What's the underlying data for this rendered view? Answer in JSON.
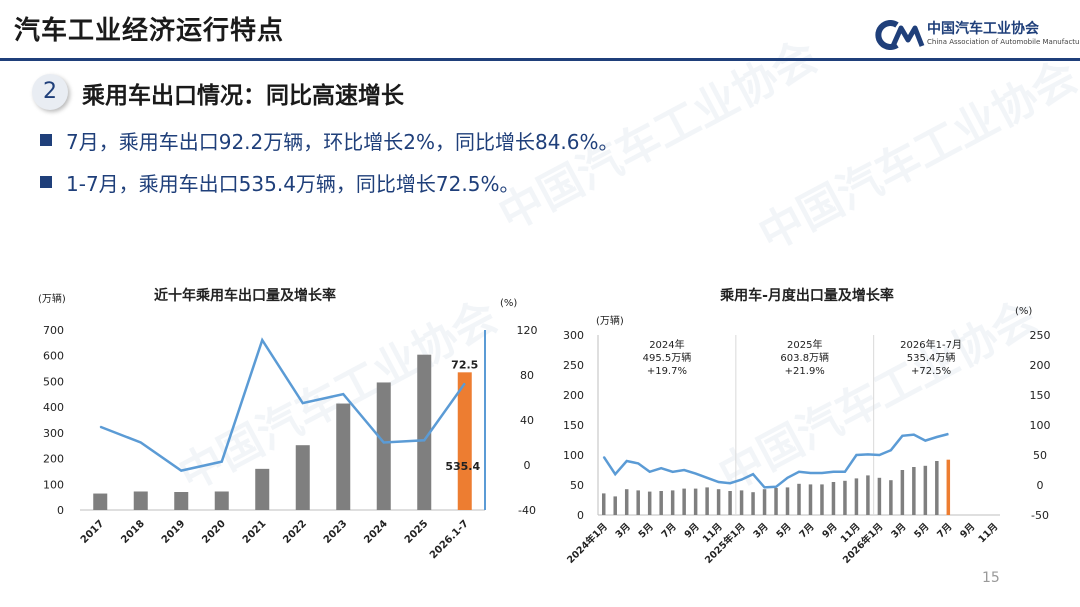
{
  "header": {
    "title": "汽车工业经济运行特点",
    "logo_cn": "中国汽车工业协会",
    "logo_en": "China Association of Automobile Manufacturers"
  },
  "section": {
    "number": "2",
    "title": "乘用车出口情况：同比高速增长"
  },
  "bullets": [
    "7月，乘用车出口92.2万辆，环比增长2%，同比增长84.6%。",
    "1-7月，乘用车出口535.4万辆，同比增长72.5%。"
  ],
  "watermark": "中国汽车工业协会",
  "page_number": "15",
  "colors": {
    "bar": "#7f7f7f",
    "highlight": "#ed7d31",
    "line": "#5b9bd5",
    "brand": "#1f3f7a"
  },
  "chart_data": [
    {
      "type": "bar",
      "title": "近十年乘用车出口量及增长率",
      "ylabel": "(万辆)",
      "y2label": "(%)",
      "categories": [
        "2017",
        "2018",
        "2019",
        "2020",
        "2021",
        "2022",
        "2023",
        "2024",
        "2025",
        "2026.1-7"
      ],
      "ylim": [
        0,
        700
      ],
      "yticks": [
        "0",
        "100",
        "200",
        "300",
        "400",
        "500",
        "600",
        "700"
      ],
      "y2lim": [
        -40,
        120
      ],
      "y2ticks": [
        "-40",
        "0",
        "40",
        "80",
        "120"
      ],
      "series": [
        {
          "values": [
            64,
            72,
            70,
            72,
            160,
            252,
            414,
            496,
            604,
            535.4
          ]
        },
        {
          "values": [
            34,
            20,
            -5,
            3,
            111,
            55,
            63,
            20,
            22,
            72.5
          ]
        }
      ],
      "data_labels": {
        "bar_last": "535.4",
        "line_last": "72.5"
      },
      "grid": false
    },
    {
      "type": "bar",
      "title": "乘用车-月度出口量及增长率",
      "ylabel": "(万辆)",
      "y2label": "(%)",
      "ylim": [
        0,
        300
      ],
      "yticks": [
        "0",
        "50",
        "100",
        "150",
        "200",
        "250",
        "300"
      ],
      "y2lim": [
        -50,
        250
      ],
      "y2ticks": [
        "-50",
        "0",
        "50",
        "100",
        "150",
        "200",
        "250"
      ],
      "xticklabels": [
        "2024年1月",
        "3月",
        "5月",
        "7月",
        "9月",
        "11月",
        "2025年1月",
        "3月",
        "5月",
        "7月",
        "9月",
        "11月",
        "2026年1月",
        "3月",
        "5月",
        "7月",
        "9月",
        "11月"
      ],
      "series": [
        {
          "values": [
            36,
            31,
            43,
            41,
            39,
            40,
            41,
            44,
            44,
            46,
            43,
            40,
            41,
            38,
            43,
            45,
            46,
            52,
            51,
            51,
            55,
            57,
            61,
            66,
            62,
            58,
            75,
            80,
            82,
            90,
            92.2
          ]
        },
        {
          "values": [
            47,
            18,
            40,
            36,
            22,
            28,
            22,
            25,
            19,
            12,
            5,
            3,
            9,
            18,
            -4,
            -3,
            12,
            22,
            20,
            20,
            22,
            22,
            50,
            51,
            50,
            58,
            82,
            84,
            74,
            80,
            85
          ]
        }
      ],
      "annotations": [
        {
          "lines": [
            "2024年",
            "495.5万辆",
            "+19.7%"
          ]
        },
        {
          "lines": [
            "2025年",
            "603.8万辆",
            "+21.9%"
          ]
        },
        {
          "lines": [
            "2026年1-7月",
            "535.4万辆",
            "+72.5%"
          ]
        }
      ],
      "grid": false
    }
  ]
}
